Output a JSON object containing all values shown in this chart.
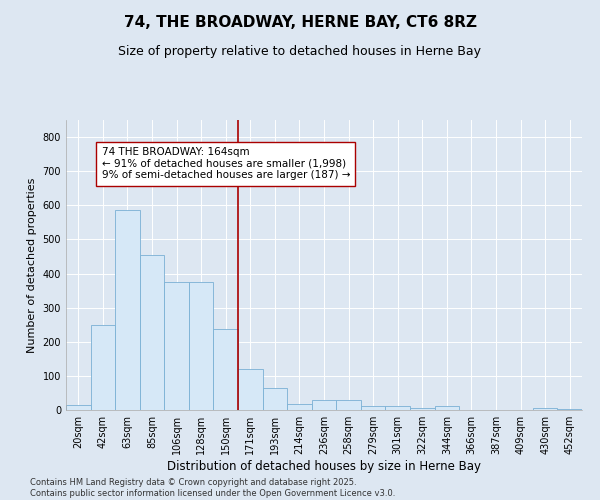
{
  "title": "74, THE BROADWAY, HERNE BAY, CT6 8RZ",
  "subtitle": "Size of property relative to detached houses in Herne Bay",
  "xlabel": "Distribution of detached houses by size in Herne Bay",
  "ylabel": "Number of detached properties",
  "categories": [
    "20sqm",
    "42sqm",
    "63sqm",
    "85sqm",
    "106sqm",
    "128sqm",
    "150sqm",
    "171sqm",
    "193sqm",
    "214sqm",
    "236sqm",
    "258sqm",
    "279sqm",
    "301sqm",
    "322sqm",
    "344sqm",
    "366sqm",
    "387sqm",
    "409sqm",
    "430sqm",
    "452sqm"
  ],
  "values": [
    15,
    248,
    585,
    455,
    375,
    375,
    237,
    120,
    65,
    18,
    30,
    30,
    12,
    12,
    5,
    12,
    0,
    0,
    0,
    5,
    3
  ],
  "bar_color": "#d6e8f7",
  "bar_edge_color": "#7ab0d4",
  "vline_x_index": 7,
  "vline_color": "#aa0000",
  "annotation_text": "74 THE BROADWAY: 164sqm\n← 91% of detached houses are smaller (1,998)\n9% of semi-detached houses are larger (187) →",
  "annotation_box_color": "#ffffff",
  "annotation_box_edge": "#aa0000",
  "ylim": [
    0,
    850
  ],
  "yticks": [
    0,
    100,
    200,
    300,
    400,
    500,
    600,
    700,
    800
  ],
  "background_color": "#dde7f2",
  "grid_color": "#ffffff",
  "footer_text": "Contains HM Land Registry data © Crown copyright and database right 2025.\nContains public sector information licensed under the Open Government Licence v3.0.",
  "title_fontsize": 11,
  "subtitle_fontsize": 9,
  "xlabel_fontsize": 8.5,
  "ylabel_fontsize": 8,
  "tick_fontsize": 7,
  "annotation_fontsize": 7.5,
  "footer_fontsize": 6
}
